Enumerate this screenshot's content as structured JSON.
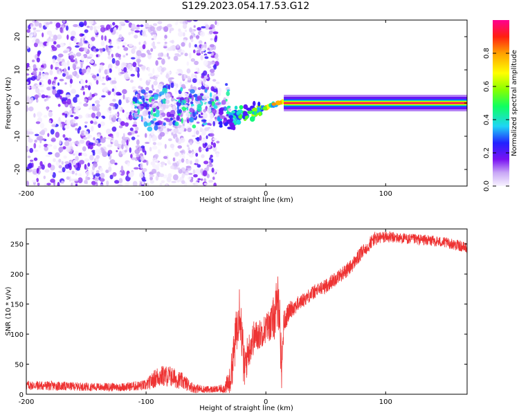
{
  "figure": {
    "title": "S129.2023.054.17.53.G12"
  },
  "chart_data": [
    {
      "type": "heatmap",
      "xlabel": "Height of straight line (km)",
      "ylabel": "Frequency (Hz)",
      "xlim": [
        -200,
        168
      ],
      "ylim": [
        -25,
        25
      ],
      "x_ticks": [
        "-200",
        "-100",
        "0",
        "100"
      ],
      "y_ticks": [
        "-20",
        "-10",
        "0",
        "10",
        "20"
      ],
      "colorbar": {
        "label": "Normalized spectral amplitude",
        "range": [
          0,
          1
        ],
        "ticks": [
          "0.0",
          "0.2",
          "0.4",
          "0.6",
          "0.8"
        ]
      },
      "features": [
        {
          "kind": "diffuse_noise",
          "x_range": [
            -200,
            -40
          ],
          "freq_range": [
            -25,
            25
          ],
          "amplitude": 0.15
        },
        {
          "kind": "scattered_blobs",
          "x_range": [
            -110,
            -30
          ],
          "freq_range": [
            -8,
            6
          ],
          "amplitude": 0.3
        },
        {
          "kind": "emerging_line",
          "x_range": [
            -40,
            15
          ],
          "freq_range": [
            -6,
            3
          ],
          "amplitude": 0.5
        },
        {
          "kind": "steady_line",
          "x_range": [
            15,
            168
          ],
          "freq": 0,
          "amplitude": 1.0
        }
      ]
    },
    {
      "type": "line",
      "xlabel": "Height of straight line (km)",
      "ylabel": "SNR (10 * v/v)",
      "xlim": [
        -200,
        168
      ],
      "ylim": [
        0,
        275
      ],
      "x_ticks": [
        "-200",
        "-100",
        "0",
        "100"
      ],
      "y_ticks": [
        "0",
        "50",
        "100",
        "150",
        "200",
        "250"
      ],
      "color": "#ee3333",
      "x": [
        -200,
        -180,
        -160,
        -140,
        -120,
        -100,
        -90,
        -80,
        -70,
        -60,
        -50,
        -40,
        -35,
        -30,
        -26,
        -22,
        -18,
        -15,
        -10,
        -5,
        0,
        5,
        9,
        11,
        13,
        15,
        20,
        30,
        40,
        50,
        60,
        70,
        80,
        90,
        100,
        110,
        120,
        130,
        140,
        150,
        160,
        168
      ],
      "y": [
        15,
        14,
        13,
        12,
        12,
        15,
        30,
        30,
        22,
        10,
        8,
        8,
        10,
        20,
        80,
        150,
        40,
        70,
        95,
        100,
        110,
        120,
        140,
        160,
        40,
        120,
        140,
        155,
        170,
        180,
        195,
        210,
        235,
        258,
        262,
        260,
        258,
        257,
        255,
        252,
        248,
        243
      ],
      "noise": [
        8,
        8,
        7,
        7,
        7,
        9,
        18,
        18,
        14,
        8,
        6,
        6,
        8,
        25,
        40,
        45,
        40,
        30,
        28,
        25,
        25,
        30,
        50,
        50,
        40,
        20,
        15,
        12,
        12,
        12,
        12,
        12,
        12,
        12,
        10,
        9,
        9,
        9,
        9,
        9,
        9,
        9
      ]
    }
  ]
}
